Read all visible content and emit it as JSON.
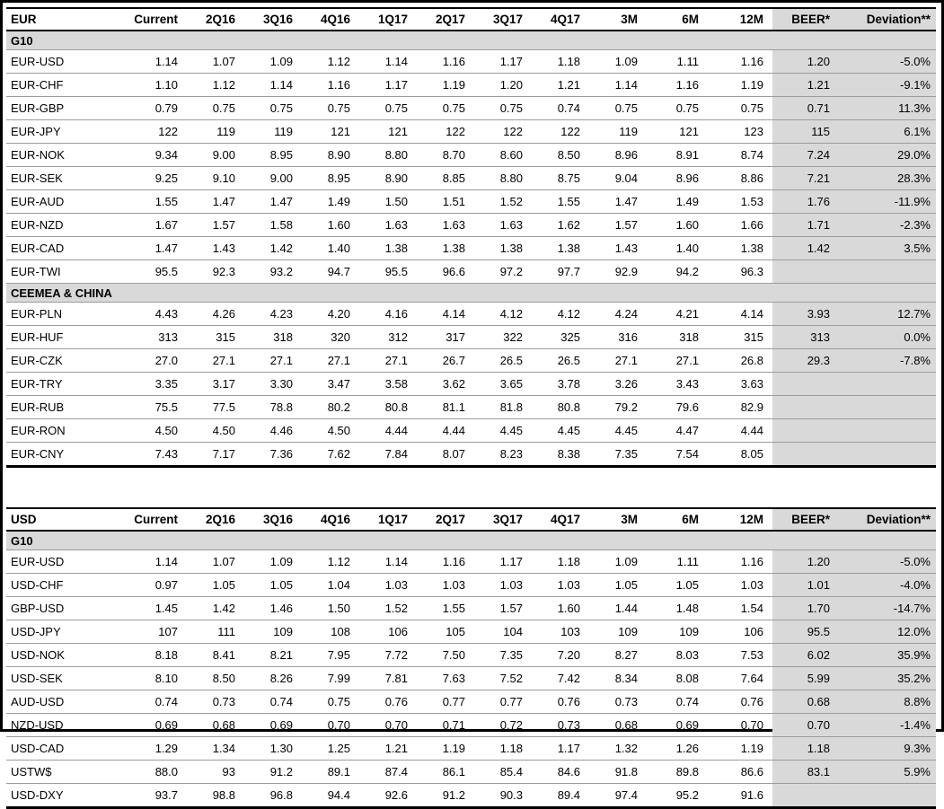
{
  "colors": {
    "section_bg": "#d9d9d9",
    "beer_column_bg": "#d9d9d9",
    "rule_black": "#000000",
    "row_divider": "#9c9c9c",
    "text": "#000000",
    "background": "#ffffff"
  },
  "tables": [
    {
      "title": "EUR",
      "columns": [
        "Current",
        "2Q16",
        "3Q16",
        "4Q16",
        "1Q17",
        "2Q17",
        "3Q17",
        "4Q17",
        "3M",
        "6M",
        "12M",
        "BEER*",
        "Deviation**"
      ],
      "sections": [
        {
          "label": "G10",
          "rows": [
            {
              "pair": "EUR-USD",
              "values": [
                "1.14",
                "1.07",
                "1.09",
                "1.12",
                "1.14",
                "1.16",
                "1.17",
                "1.18",
                "1.09",
                "1.11",
                "1.16",
                "1.20",
                "-5.0%"
              ]
            },
            {
              "pair": "EUR-CHF",
              "values": [
                "1.10",
                "1.12",
                "1.14",
                "1.16",
                "1.17",
                "1.19",
                "1.20",
                "1.21",
                "1.14",
                "1.16",
                "1.19",
                "1.21",
                "-9.1%"
              ]
            },
            {
              "pair": "EUR-GBP",
              "values": [
                "0.79",
                "0.75",
                "0.75",
                "0.75",
                "0.75",
                "0.75",
                "0.75",
                "0.74",
                "0.75",
                "0.75",
                "0.75",
                "0.71",
                "11.3%"
              ]
            },
            {
              "pair": "EUR-JPY",
              "values": [
                "122",
                "119",
                "119",
                "121",
                "121",
                "122",
                "122",
                "122",
                "119",
                "121",
                "123",
                "115",
                "6.1%"
              ]
            },
            {
              "pair": "EUR-NOK",
              "values": [
                "9.34",
                "9.00",
                "8.95",
                "8.90",
                "8.80",
                "8.70",
                "8.60",
                "8.50",
                "8.96",
                "8.91",
                "8.74",
                "7.24",
                "29.0%"
              ]
            },
            {
              "pair": "EUR-SEK",
              "values": [
                "9.25",
                "9.10",
                "9.00",
                "8.95",
                "8.90",
                "8.85",
                "8.80",
                "8.75",
                "9.04",
                "8.96",
                "8.86",
                "7.21",
                "28.3%"
              ]
            },
            {
              "pair": "EUR-AUD",
              "values": [
                "1.55",
                "1.47",
                "1.47",
                "1.49",
                "1.50",
                "1.51",
                "1.52",
                "1.55",
                "1.47",
                "1.49",
                "1.53",
                "1.76",
                "-11.9%"
              ]
            },
            {
              "pair": "EUR-NZD",
              "values": [
                "1.67",
                "1.57",
                "1.58",
                "1.60",
                "1.63",
                "1.63",
                "1.63",
                "1.62",
                "1.57",
                "1.60",
                "1.66",
                "1.71",
                "-2.3%"
              ]
            },
            {
              "pair": "EUR-CAD",
              "values": [
                "1.47",
                "1.43",
                "1.42",
                "1.40",
                "1.38",
                "1.38",
                "1.38",
                "1.38",
                "1.43",
                "1.40",
                "1.38",
                "1.42",
                "3.5%"
              ]
            },
            {
              "pair": "EUR-TWI",
              "values": [
                "95.5",
                "92.3",
                "93.2",
                "94.7",
                "95.5",
                "96.6",
                "97.2",
                "97.7",
                "92.9",
                "94.2",
                "96.3",
                "",
                ""
              ]
            }
          ]
        },
        {
          "label": "CEEMEA & CHINA",
          "rows": [
            {
              "pair": "EUR-PLN",
              "values": [
                "4.43",
                "4.26",
                "4.23",
                "4.20",
                "4.16",
                "4.14",
                "4.12",
                "4.12",
                "4.24",
                "4.21",
                "4.14",
                "3.93",
                "12.7%"
              ]
            },
            {
              "pair": "EUR-HUF",
              "values": [
                "313",
                "315",
                "318",
                "320",
                "312",
                "317",
                "322",
                "325",
                "316",
                "318",
                "315",
                "313",
                "0.0%"
              ]
            },
            {
              "pair": "EUR-CZK",
              "values": [
                "27.0",
                "27.1",
                "27.1",
                "27.1",
                "27.1",
                "26.7",
                "26.5",
                "26.5",
                "27.1",
                "27.1",
                "26.8",
                "29.3",
                "-7.8%"
              ]
            },
            {
              "pair": "EUR-TRY",
              "values": [
                "3.35",
                "3.17",
                "3.30",
                "3.47",
                "3.58",
                "3.62",
                "3.65",
                "3.78",
                "3.26",
                "3.43",
                "3.63",
                "",
                ""
              ]
            },
            {
              "pair": "EUR-RUB",
              "values": [
                "75.5",
                "77.5",
                "78.8",
                "80.2",
                "80.8",
                "81.1",
                "81.8",
                "80.8",
                "79.2",
                "79.6",
                "82.9",
                "",
                ""
              ]
            },
            {
              "pair": "EUR-RON",
              "values": [
                "4.50",
                "4.50",
                "4.46",
                "4.50",
                "4.44",
                "4.44",
                "4.45",
                "4.45",
                "4.45",
                "4.47",
                "4.44",
                "",
                ""
              ]
            },
            {
              "pair": "EUR-CNY",
              "values": [
                "7.43",
                "7.17",
                "7.36",
                "7.62",
                "7.84",
                "8.07",
                "8.23",
                "8.38",
                "7.35",
                "7.54",
                "8.05",
                "",
                ""
              ]
            }
          ]
        }
      ]
    },
    {
      "title": "USD",
      "columns": [
        "Current",
        "2Q16",
        "3Q16",
        "4Q16",
        "1Q17",
        "2Q17",
        "3Q17",
        "4Q17",
        "3M",
        "6M",
        "12M",
        "BEER*",
        "Deviation**"
      ],
      "sections": [
        {
          "label": "G10",
          "rows": [
            {
              "pair": "EUR-USD",
              "values": [
                "1.14",
                "1.07",
                "1.09",
                "1.12",
                "1.14",
                "1.16",
                "1.17",
                "1.18",
                "1.09",
                "1.11",
                "1.16",
                "1.20",
                "-5.0%"
              ]
            },
            {
              "pair": "USD-CHF",
              "values": [
                "0.97",
                "1.05",
                "1.05",
                "1.04",
                "1.03",
                "1.03",
                "1.03",
                "1.03",
                "1.05",
                "1.05",
                "1.03",
                "1.01",
                "-4.0%"
              ]
            },
            {
              "pair": "GBP-USD",
              "values": [
                "1.45",
                "1.42",
                "1.46",
                "1.50",
                "1.52",
                "1.55",
                "1.57",
                "1.60",
                "1.44",
                "1.48",
                "1.54",
                "1.70",
                "-14.7%"
              ]
            },
            {
              "pair": "USD-JPY",
              "values": [
                "107",
                "111",
                "109",
                "108",
                "106",
                "105",
                "104",
                "103",
                "109",
                "109",
                "106",
                "95.5",
                "12.0%"
              ]
            },
            {
              "pair": "USD-NOK",
              "values": [
                "8.18",
                "8.41",
                "8.21",
                "7.95",
                "7.72",
                "7.50",
                "7.35",
                "7.20",
                "8.27",
                "8.03",
                "7.53",
                "6.02",
                "35.9%"
              ]
            },
            {
              "pair": "USD-SEK",
              "values": [
                "8.10",
                "8.50",
                "8.26",
                "7.99",
                "7.81",
                "7.63",
                "7.52",
                "7.42",
                "8.34",
                "8.08",
                "7.64",
                "5.99",
                "35.2%"
              ]
            },
            {
              "pair": "AUD-USD",
              "values": [
                "0.74",
                "0.73",
                "0.74",
                "0.75",
                "0.76",
                "0.77",
                "0.77",
                "0.76",
                "0.73",
                "0.74",
                "0.76",
                "0.68",
                "8.8%"
              ]
            },
            {
              "pair": "NZD-USD",
              "values": [
                "0.69",
                "0.68",
                "0.69",
                "0.70",
                "0.70",
                "0.71",
                "0.72",
                "0.73",
                "0.68",
                "0.69",
                "0.70",
                "0.70",
                "-1.4%"
              ]
            },
            {
              "pair": "USD-CAD",
              "values": [
                "1.29",
                "1.34",
                "1.30",
                "1.25",
                "1.21",
                "1.19",
                "1.18",
                "1.17",
                "1.32",
                "1.26",
                "1.19",
                "1.18",
                "9.3%"
              ]
            },
            {
              "pair": "USTW$",
              "values": [
                "88.0",
                "93",
                "91.2",
                "89.1",
                "87.4",
                "86.1",
                "85.4",
                "84.6",
                "91.8",
                "89.8",
                "86.6",
                "83.1",
                "5.9%"
              ]
            },
            {
              "pair": "USD-DXY",
              "values": [
                "93.7",
                "98.8",
                "96.8",
                "94.4",
                "92.6",
                "91.2",
                "90.3",
                "89.4",
                "97.4",
                "95.2",
                "91.6",
                "",
                ""
              ]
            }
          ]
        }
      ]
    }
  ]
}
